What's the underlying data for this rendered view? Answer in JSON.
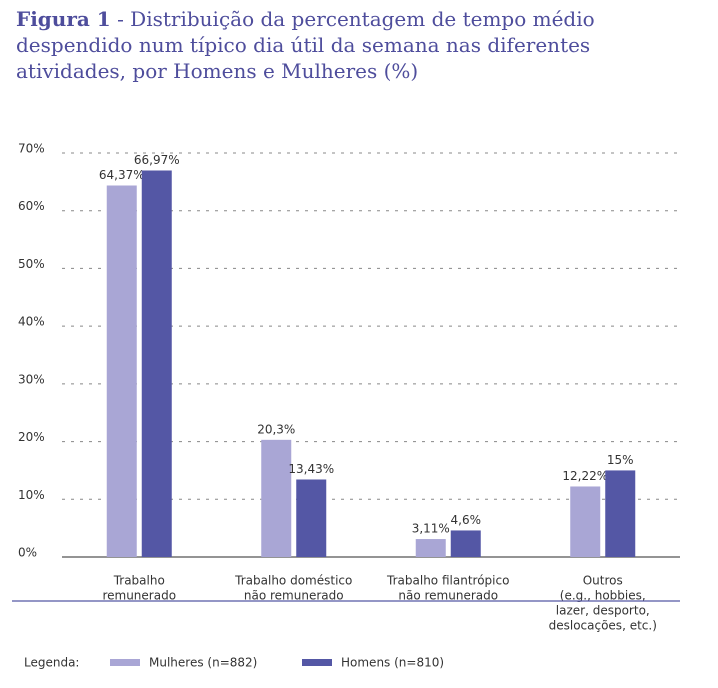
{
  "chart_data": {
    "type": "bar",
    "title_bold": "Figura 1",
    "title": "- Distribuição da percentagem de tempo médio despendido num típico dia útil da semana nas diferentes atividades, por Homens e Mulheres (%)",
    "categories": [
      [
        "Trabalho",
        "remunerado"
      ],
      [
        "Trabalho doméstico",
        "não remunerado"
      ],
      [
        "Trabalho filantrópico",
        "não remunerado"
      ],
      [
        "Outros",
        "(e.g., hobbies,",
        "lazer, desporto,",
        "deslocações, etc.)"
      ]
    ],
    "series": [
      {
        "name": "Mulheres (n=882)",
        "color": "#a9a6d5",
        "values": [
          64.37,
          20.3,
          3.11,
          12.22
        ],
        "value_labels": [
          "64,37%",
          "20,3%",
          "3,11%",
          "12,22%"
        ]
      },
      {
        "name": "Homens (n=810)",
        "color": "#5457a5",
        "values": [
          66.97,
          13.43,
          4.6,
          15
        ],
        "value_labels": [
          "66,97%",
          "13,43%",
          "4,6%",
          "15%"
        ]
      }
    ],
    "ylim": [
      0,
      70
    ],
    "yticks": [
      {
        "value": 0,
        "label": "0%"
      },
      {
        "value": 10,
        "label": "10%"
      },
      {
        "value": 20,
        "label": "20%"
      },
      {
        "value": 30,
        "label": "30%"
      },
      {
        "value": 40,
        "label": "40%"
      },
      {
        "value": 50,
        "label": "50%"
      },
      {
        "value": 60,
        "label": "60%"
      },
      {
        "value": 70,
        "label": "70%"
      }
    ],
    "grid": true,
    "legend_title": "Legenda:"
  }
}
